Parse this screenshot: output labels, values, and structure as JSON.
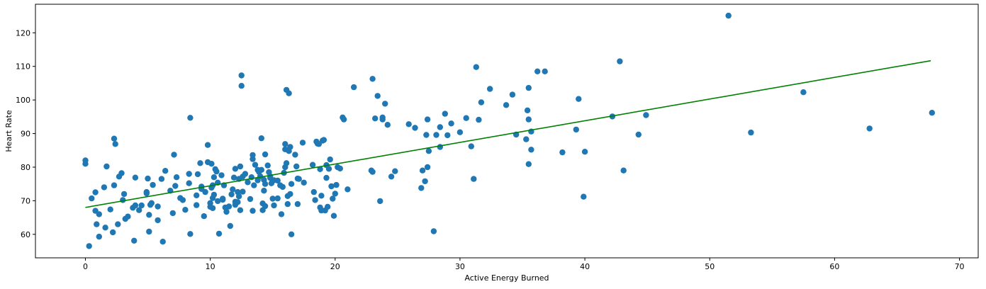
{
  "chart_data": {
    "type": "scatter",
    "title": "",
    "xlabel": "Active Energy Burned",
    "ylabel": "Heart Rate",
    "xlim": [
      -4.0,
      71.5
    ],
    "ylim": [
      53.0,
      128.5
    ],
    "xticks": [
      0,
      10,
      20,
      30,
      40,
      50,
      60,
      70
    ],
    "yticks": [
      60,
      70,
      80,
      90,
      100,
      110,
      120
    ],
    "grid": false,
    "legend": "none",
    "colors": {
      "points": "#1f77b4",
      "fit_line": "#008000",
      "axes": "#000000",
      "background": "#ffffff"
    },
    "fit_line": {
      "x": [
        0,
        67.7
      ],
      "y": [
        68.0,
        111.7
      ]
    },
    "points": [
      [
        0.0,
        81.0
      ],
      [
        0.0,
        82.0
      ],
      [
        0.3,
        56.5
      ],
      [
        0.5,
        70.7
      ],
      [
        0.8,
        67.0
      ],
      [
        0.8,
        72.5
      ],
      [
        0.9,
        63.0
      ],
      [
        1.1,
        66.0
      ],
      [
        1.1,
        59.3
      ],
      [
        1.5,
        74.0
      ],
      [
        1.6,
        62.0
      ],
      [
        1.7,
        80.2
      ],
      [
        2.0,
        67.4
      ],
      [
        2.2,
        60.6
      ],
      [
        2.3,
        88.5
      ],
      [
        2.3,
        74.6
      ],
      [
        2.4,
        86.9
      ],
      [
        2.6,
        63.0
      ],
      [
        2.7,
        77.2
      ],
      [
        2.9,
        78.2
      ],
      [
        3.0,
        70.2
      ],
      [
        3.1,
        72.0
      ],
      [
        3.2,
        64.6
      ],
      [
        3.4,
        65.3
      ],
      [
        3.8,
        67.9
      ],
      [
        3.9,
        58.1
      ],
      [
        4.0,
        68.6
      ],
      [
        4.0,
        76.9
      ],
      [
        4.3,
        67.2
      ],
      [
        4.5,
        68.6
      ],
      [
        4.9,
        72.6
      ],
      [
        4.9,
        72.2
      ],
      [
        5.0,
        76.6
      ],
      [
        5.1,
        65.8
      ],
      [
        5.1,
        60.8
      ],
      [
        5.2,
        68.8
      ],
      [
        5.3,
        69.3
      ],
      [
        5.4,
        74.7
      ],
      [
        5.8,
        68.3
      ],
      [
        5.8,
        64.2
      ],
      [
        6.1,
        76.5
      ],
      [
        6.2,
        57.8
      ],
      [
        6.4,
        78.9
      ],
      [
        6.8,
        73.0
      ],
      [
        7.0,
        66.3
      ],
      [
        7.1,
        83.7
      ],
      [
        7.2,
        74.4
      ],
      [
        7.3,
        77.0
      ],
      [
        7.6,
        70.8
      ],
      [
        7.8,
        70.2
      ],
      [
        8.0,
        67.3
      ],
      [
        8.3,
        75.2
      ],
      [
        8.3,
        78.0
      ],
      [
        8.4,
        94.7
      ],
      [
        8.4,
        60.1
      ],
      [
        8.9,
        68.7
      ],
      [
        8.9,
        71.6
      ],
      [
        9.0,
        77.9
      ],
      [
        9.2,
        81.2
      ],
      [
        9.3,
        74.2
      ],
      [
        9.3,
        73.5
      ],
      [
        9.5,
        65.4
      ],
      [
        9.6,
        72.6
      ],
      [
        9.8,
        86.6
      ],
      [
        9.8,
        81.5
      ],
      [
        10.0,
        69.3
      ],
      [
        10.0,
        68.2
      ],
      [
        10.1,
        81.0
      ],
      [
        10.1,
        73.9
      ],
      [
        10.2,
        67.8
      ],
      [
        10.2,
        70.8
      ],
      [
        10.2,
        74.6
      ],
      [
        10.3,
        71.8
      ],
      [
        10.3,
        77.0
      ],
      [
        10.4,
        79.4
      ],
      [
        10.5,
        78.7
      ],
      [
        10.6,
        75.4
      ],
      [
        10.6,
        69.9
      ],
      [
        10.7,
        60.2
      ],
      [
        10.9,
        77.6
      ],
      [
        11.0,
        70.6
      ],
      [
        11.0,
        70.3
      ],
      [
        11.1,
        74.6
      ],
      [
        11.2,
        68.0
      ],
      [
        11.3,
        66.7
      ],
      [
        11.5,
        68.3
      ],
      [
        11.6,
        62.5
      ],
      [
        11.7,
        71.9
      ],
      [
        11.8,
        73.4
      ],
      [
        11.9,
        76.9
      ],
      [
        12.0,
        69.7
      ],
      [
        12.0,
        79.5
      ],
      [
        12.0,
        68.8
      ],
      [
        12.2,
        72.6
      ],
      [
        12.2,
        69.6
      ],
      [
        12.3,
        76.5
      ],
      [
        12.3,
        71.3
      ],
      [
        12.4,
        80.2
      ],
      [
        12.4,
        67.2
      ],
      [
        12.5,
        107.3
      ],
      [
        12.5,
        104.2
      ],
      [
        12.6,
        72.7
      ],
      [
        12.6,
        77.2
      ],
      [
        12.8,
        78.0
      ],
      [
        13.0,
        75.5
      ],
      [
        13.2,
        70.5
      ],
      [
        13.3,
        77.0
      ],
      [
        13.4,
        83.6
      ],
      [
        13.4,
        82.4
      ],
      [
        13.4,
        67.0
      ],
      [
        13.5,
        74.6
      ],
      [
        13.6,
        80.7
      ],
      [
        13.8,
        79.2
      ],
      [
        13.8,
        76.1
      ],
      [
        13.9,
        78.6
      ],
      [
        14.0,
        77.3
      ],
      [
        14.1,
        88.6
      ],
      [
        14.1,
        79.2
      ],
      [
        14.2,
        69.2
      ],
      [
        14.2,
        67.2
      ],
      [
        14.3,
        76.2
      ],
      [
        14.3,
        73.0
      ],
      [
        14.4,
        83.8
      ],
      [
        14.4,
        75.0
      ],
      [
        14.4,
        68.4
      ],
      [
        14.6,
        80.5
      ],
      [
        14.7,
        78.5
      ],
      [
        14.8,
        77.3
      ],
      [
        14.8,
        76.8
      ],
      [
        14.9,
        75.2
      ],
      [
        15.0,
        70.6
      ],
      [
        15.1,
        68.6
      ],
      [
        15.1,
        76.1
      ],
      [
        15.4,
        76.0
      ],
      [
        15.4,
        70.7
      ],
      [
        15.6,
        74.6
      ],
      [
        15.7,
        66.0
      ],
      [
        15.8,
        74.1
      ],
      [
        15.9,
        78.3
      ],
      [
        16.0,
        85.3
      ],
      [
        16.0,
        86.9
      ],
      [
        16.0,
        80.0
      ],
      [
        16.1,
        103.0
      ],
      [
        16.1,
        81.2
      ],
      [
        16.2,
        71.4
      ],
      [
        16.2,
        69.0
      ],
      [
        16.3,
        102.0
      ],
      [
        16.3,
        84.8
      ],
      [
        16.4,
        72.0
      ],
      [
        16.4,
        86.0
      ],
      [
        16.5,
        75.0
      ],
      [
        16.5,
        60.0
      ],
      [
        16.8,
        83.7
      ],
      [
        16.9,
        80.2
      ],
      [
        17.0,
        76.6
      ],
      [
        17.0,
        69.0
      ],
      [
        17.1,
        76.5
      ],
      [
        17.4,
        87.3
      ],
      [
        17.5,
        75.4
      ],
      [
        18.2,
        80.7
      ],
      [
        18.3,
        72.6
      ],
      [
        18.4,
        70.2
      ],
      [
        18.5,
        87.6
      ],
      [
        18.6,
        87.0
      ],
      [
        18.7,
        86.9
      ],
      [
        18.8,
        68.0
      ],
      [
        18.8,
        79.4
      ],
      [
        18.9,
        71.5
      ],
      [
        18.9,
        67.1
      ],
      [
        19.0,
        87.9
      ],
      [
        19.1,
        88.1
      ],
      [
        19.2,
        67.1
      ],
      [
        19.3,
        76.8
      ],
      [
        19.3,
        80.6
      ],
      [
        19.4,
        68.2
      ],
      [
        19.5,
        79.5
      ],
      [
        19.6,
        82.3
      ],
      [
        19.7,
        74.3
      ],
      [
        19.8,
        70.6
      ],
      [
        19.9,
        65.5
      ],
      [
        20.0,
        72.1
      ],
      [
        20.1,
        74.7
      ],
      [
        20.2,
        80.0
      ],
      [
        20.4,
        79.6
      ],
      [
        20.6,
        94.8
      ],
      [
        20.7,
        94.2
      ],
      [
        21.0,
        73.4
      ],
      [
        21.5,
        103.8
      ],
      [
        22.9,
        79.0
      ],
      [
        23.0,
        78.6
      ],
      [
        23.0,
        106.3
      ],
      [
        23.2,
        94.5
      ],
      [
        23.4,
        101.2
      ],
      [
        23.6,
        69.9
      ],
      [
        23.8,
        94.8
      ],
      [
        23.8,
        94.2
      ],
      [
        24.0,
        98.9
      ],
      [
        24.2,
        92.6
      ],
      [
        24.5,
        77.2
      ],
      [
        24.8,
        78.8
      ],
      [
        25.9,
        92.8
      ],
      [
        26.4,
        91.7
      ],
      [
        26.9,
        73.8
      ],
      [
        27.0,
        79.0
      ],
      [
        27.2,
        75.8
      ],
      [
        27.3,
        89.6
      ],
      [
        27.4,
        94.2
      ],
      [
        27.4,
        80.0
      ],
      [
        27.5,
        84.8
      ],
      [
        27.9,
        60.9
      ],
      [
        28.1,
        89.6
      ],
      [
        28.4,
        86.0
      ],
      [
        28.4,
        91.9
      ],
      [
        28.8,
        95.9
      ],
      [
        29.0,
        89.5
      ],
      [
        29.3,
        93.0
      ],
      [
        30.0,
        90.4
      ],
      [
        30.5,
        94.6
      ],
      [
        30.9,
        86.2
      ],
      [
        31.1,
        76.5
      ],
      [
        31.3,
        109.8
      ],
      [
        31.5,
        94.1
      ],
      [
        31.7,
        99.3
      ],
      [
        32.4,
        103.3
      ],
      [
        33.7,
        98.5
      ],
      [
        34.2,
        101.6
      ],
      [
        34.5,
        89.7
      ],
      [
        35.3,
        88.3
      ],
      [
        35.4,
        96.9
      ],
      [
        35.5,
        94.2
      ],
      [
        35.5,
        103.6
      ],
      [
        35.5,
        80.9
      ],
      [
        35.7,
        85.2
      ],
      [
        35.7,
        90.6
      ],
      [
        36.2,
        108.5
      ],
      [
        36.8,
        108.5
      ],
      [
        38.2,
        84.4
      ],
      [
        39.3,
        91.2
      ],
      [
        39.5,
        100.3
      ],
      [
        39.9,
        71.2
      ],
      [
        40.0,
        84.6
      ],
      [
        42.2,
        95.1
      ],
      [
        42.8,
        111.5
      ],
      [
        43.1,
        79.0
      ],
      [
        44.3,
        89.7
      ],
      [
        44.9,
        95.5
      ],
      [
        51.5,
        125.1
      ],
      [
        53.3,
        90.3
      ],
      [
        57.5,
        102.3
      ],
      [
        62.8,
        91.5
      ],
      [
        67.8,
        96.2
      ]
    ]
  }
}
